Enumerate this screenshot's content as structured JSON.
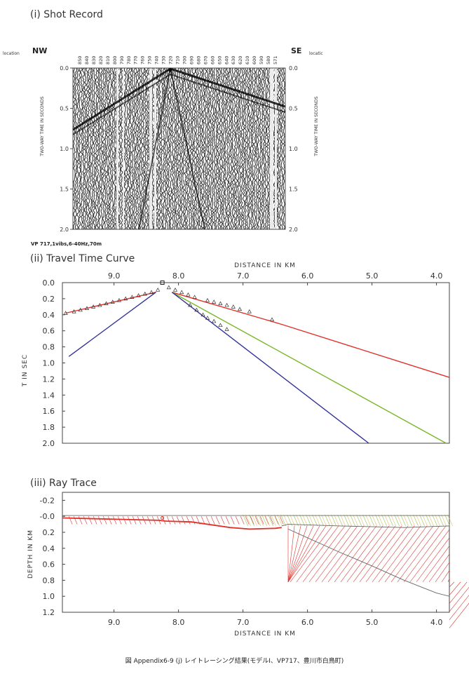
{
  "panel1": {
    "title": "(i) Shot Record",
    "left_side_label": "location",
    "right_side_label": "locatic",
    "nw": "NW",
    "se": "SE",
    "station_labels": [
      "850",
      "840",
      "830",
      "820",
      "810",
      "800",
      "790",
      "780",
      "770",
      "760",
      "750",
      "740",
      "730",
      "720",
      "710",
      "700",
      "690",
      "680",
      "670",
      "660",
      "650",
      "640",
      "630",
      "620",
      "610",
      "600",
      "590",
      "580",
      "571"
    ],
    "y_axis_label": "TWO-WAY TIME IN SECONDS",
    "y_ticks": [
      "0.0",
      "0.5",
      "1.0",
      "1.5",
      "2.0"
    ],
    "footnote": "VP 717,1vibs,6-40Hz,70m"
  },
  "panel2": {
    "title": "(ii) Travel Time Curve",
    "x_axis_label": "DISTANCE IN KM",
    "y_axis_label": "T IN SEC",
    "x_ticks": [
      "9.0",
      "8.0",
      "7.0",
      "6.0",
      "5.0",
      "4.0"
    ],
    "y_ticks": [
      "0.0",
      "0.2",
      "0.4",
      "0.6",
      "0.8",
      "1.0",
      "1.2",
      "1.4",
      "1.6",
      "1.8",
      "2.0"
    ]
  },
  "panel3": {
    "title": "(iii) Ray Trace",
    "x_axis_label": "DISTANCE IN KM",
    "y_axis_label": "DEPTH IN KM",
    "x_ticks": [
      "9.0",
      "8.0",
      "7.0",
      "6.0",
      "5.0",
      "4.0"
    ],
    "y_ticks": [
      "-0.2",
      "-0.0",
      "0.2",
      "0.4",
      "0.6",
      "0.8",
      "1.0",
      "1.2"
    ]
  },
  "caption": "図 Appendix6-9 (j) レイトレーシング結果(モデルⅠ、VP717、豊川市白鳥町)",
  "colors": {
    "red": "#e0312a",
    "blue": "#33339a",
    "green": "#7ab829",
    "axis": "#333333",
    "gray": "#666666"
  },
  "chart_data": [
    {
      "type": "line",
      "name": "travel_time_curve",
      "x_unit": "km",
      "y_unit": "s",
      "xlim": [
        9.8,
        3.8
      ],
      "ylim": [
        0.0,
        2.0
      ],
      "y_inverted": true,
      "grid": false,
      "source_point": {
        "x": 8.25,
        "y": 0.0
      },
      "series": [
        {
          "color": "red",
          "points": [
            [
              9.75,
              0.38
            ],
            [
              8.35,
              0.12
            ]
          ]
        },
        {
          "color": "blue",
          "points": [
            [
              9.7,
              0.92
            ],
            [
              8.35,
              0.12
            ]
          ]
        },
        {
          "color": "red",
          "points": [
            [
              8.1,
              0.12
            ],
            [
              6.4,
              0.52
            ],
            [
              3.8,
              1.18
            ]
          ]
        },
        {
          "color": "green",
          "points": [
            [
              8.1,
              0.12
            ],
            [
              3.85,
              2.0
            ]
          ]
        },
        {
          "color": "blue",
          "points": [
            [
              8.1,
              0.12
            ],
            [
              5.05,
              2.0
            ]
          ]
        }
      ],
      "observed_points": [
        [
          9.75,
          0.38
        ],
        [
          9.62,
          0.36
        ],
        [
          9.52,
          0.34
        ],
        [
          9.42,
          0.32
        ],
        [
          9.32,
          0.3
        ],
        [
          9.22,
          0.28
        ],
        [
          9.12,
          0.26
        ],
        [
          9.02,
          0.24
        ],
        [
          8.92,
          0.22
        ],
        [
          8.82,
          0.2
        ],
        [
          8.72,
          0.18
        ],
        [
          8.62,
          0.16
        ],
        [
          8.52,
          0.14
        ],
        [
          8.42,
          0.12
        ],
        [
          8.32,
          0.09
        ],
        [
          8.15,
          0.06
        ],
        [
          8.05,
          0.09
        ],
        [
          7.95,
          0.12
        ],
        [
          7.85,
          0.15
        ],
        [
          7.75,
          0.18
        ],
        [
          7.55,
          0.22
        ],
        [
          7.45,
          0.24
        ],
        [
          7.35,
          0.26
        ],
        [
          7.25,
          0.28
        ],
        [
          7.15,
          0.3
        ],
        [
          7.05,
          0.33
        ],
        [
          6.9,
          0.36
        ],
        [
          6.55,
          0.46
        ],
        [
          7.82,
          0.28
        ],
        [
          7.72,
          0.34
        ],
        [
          7.62,
          0.4
        ],
        [
          7.55,
          0.44
        ],
        [
          7.45,
          0.48
        ],
        [
          7.35,
          0.53
        ],
        [
          7.25,
          0.58
        ]
      ]
    },
    {
      "type": "line",
      "name": "ray_trace",
      "x_unit": "km",
      "y_unit": "km",
      "xlim": [
        9.8,
        3.8
      ],
      "ylim": [
        -0.3,
        1.2
      ],
      "y_inverted": true,
      "grid": false,
      "source_point": {
        "x": 8.25,
        "y": 0.0
      },
      "interfaces": [
        {
          "color": "red",
          "points": [
            [
              9.8,
              0.02
            ],
            [
              8.3,
              0.05
            ],
            [
              8.2,
              0.06
            ],
            [
              7.8,
              0.07
            ],
            [
              7.2,
              0.14
            ],
            [
              6.9,
              0.16
            ],
            [
              6.5,
              0.15
            ],
            [
              6.4,
              0.14
            ]
          ]
        },
        {
          "color": "gray",
          "points": [
            [
              6.4,
              0.12
            ],
            [
              6.3,
              0.1
            ],
            [
              5.5,
              0.12
            ],
            [
              4.5,
              0.14
            ],
            [
              3.8,
              0.12
            ]
          ]
        },
        {
          "color": "gray",
          "points": [
            [
              6.3,
              0.16
            ],
            [
              5.5,
              0.45
            ],
            [
              5.0,
              0.62
            ],
            [
              4.5,
              0.8
            ],
            [
              4.0,
              0.96
            ],
            [
              3.8,
              1.0
            ]
          ]
        },
        {
          "color": "gray",
          "points": [
            [
              9.8,
              -0.01
            ],
            [
              3.8,
              -0.01
            ]
          ]
        }
      ]
    }
  ]
}
